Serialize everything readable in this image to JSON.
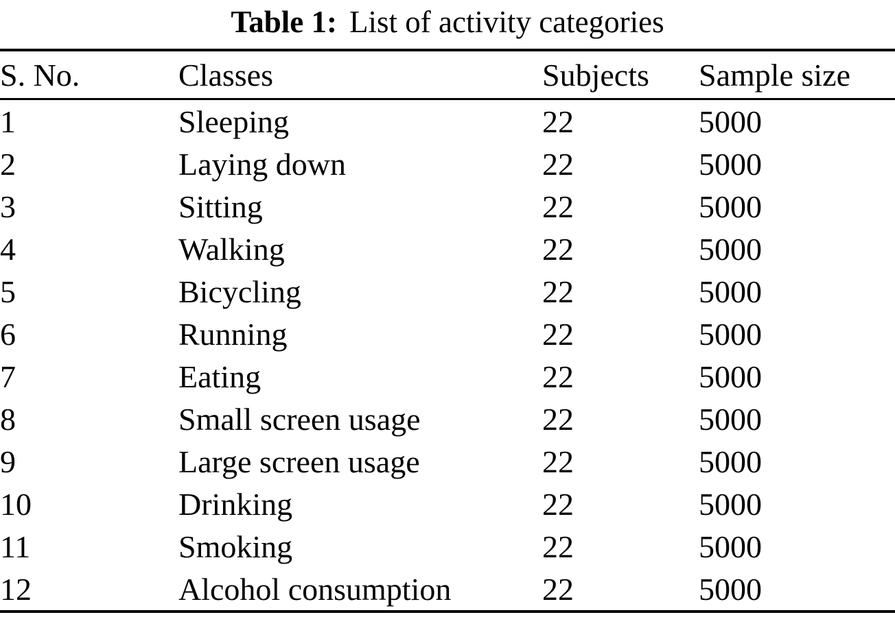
{
  "caption": {
    "label": "Table 1:",
    "title": "List of activity categories"
  },
  "table": {
    "columns": {
      "sno": "S. No.",
      "classes": "Classes",
      "subjects": "Subjects",
      "sample_size": "Sample size"
    },
    "rows": [
      {
        "sno": "1",
        "classes": "Sleeping",
        "subjects": "22",
        "sample_size": "5000"
      },
      {
        "sno": "2",
        "classes": "Laying down",
        "subjects": "22",
        "sample_size": "5000"
      },
      {
        "sno": "3",
        "classes": "Sitting",
        "subjects": "22",
        "sample_size": "5000"
      },
      {
        "sno": "4",
        "classes": "Walking",
        "subjects": "22",
        "sample_size": "5000"
      },
      {
        "sno": "5",
        "classes": "Bicycling",
        "subjects": "22",
        "sample_size": "5000"
      },
      {
        "sno": "6",
        "classes": "Running",
        "subjects": "22",
        "sample_size": "5000"
      },
      {
        "sno": "7",
        "classes": "Eating",
        "subjects": "22",
        "sample_size": "5000"
      },
      {
        "sno": "8",
        "classes": "Small screen usage",
        "subjects": "22",
        "sample_size": "5000"
      },
      {
        "sno": "9",
        "classes": "Large screen usage",
        "subjects": "22",
        "sample_size": "5000"
      },
      {
        "sno": "10",
        "classes": "Drinking",
        "subjects": "22",
        "sample_size": "5000"
      },
      {
        "sno": "11",
        "classes": "Smoking",
        "subjects": "22",
        "sample_size": "5000"
      },
      {
        "sno": "12",
        "classes": "Alcohol consumption",
        "subjects": "22",
        "sample_size": "5000"
      }
    ]
  }
}
